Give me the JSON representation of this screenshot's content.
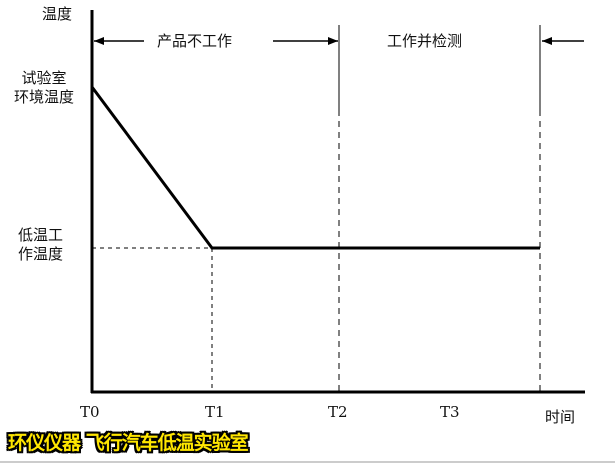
{
  "y_axis_label": "温度",
  "x_axis_label": "时间",
  "y_levels": {
    "ambient": [
      "试验室",
      "环境温度"
    ],
    "low_work": [
      "低温工",
      "作温度"
    ]
  },
  "x_ticks": [
    "T0",
    "T1",
    "T2",
    "T3"
  ],
  "phases": {
    "not_working": "产品不工作",
    "working": "工作并检测"
  },
  "watermark": "环仪仪器 飞行汽车低温实验室"
}
